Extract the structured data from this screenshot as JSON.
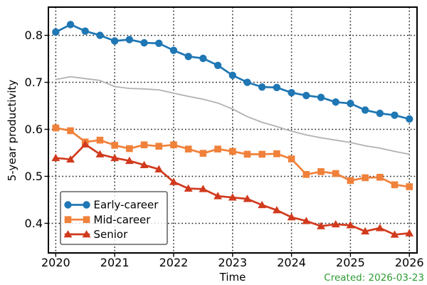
{
  "figure": {
    "created_label": "Created: 2026-03-23",
    "created_color": "#2e9b33",
    "background": "#ffffff",
    "text_color": "#000000"
  },
  "chart_data": {
    "type": "line",
    "title": "",
    "xlabel": "Time",
    "ylabel": "5-year productivity",
    "xlim": [
      2019.875,
      2026.13
    ],
    "ylim": [
      0.337,
      0.86
    ],
    "x_ticks": [
      2020,
      2021,
      2022,
      2023,
      2024,
      2025,
      2026
    ],
    "y_ticks": [
      0.4,
      0.5,
      0.6,
      0.7,
      0.8
    ],
    "grid": {
      "show": true,
      "style": "dotted",
      "color": "#000000"
    },
    "legend": {
      "position": "lower left",
      "border_color": "#444444",
      "fill_opacity": 0.8
    },
    "x": [
      2020,
      2020.25,
      2020.5,
      2020.75,
      2021,
      2021.25,
      2021.5,
      2021.75,
      2022,
      2022.25,
      2022.5,
      2022.75,
      2023,
      2023.25,
      2023.5,
      2023.75,
      2024,
      2024.25,
      2024.5,
      2024.75,
      2025,
      2025.25,
      2025.5,
      2025.75,
      2026
    ],
    "series": [
      {
        "name": "Early-career",
        "color": "#1f77b4",
        "marker": "circle",
        "in_legend": true,
        "values": [
          0.807,
          0.823,
          0.809,
          0.8,
          0.788,
          0.791,
          0.784,
          0.783,
          0.768,
          0.755,
          0.751,
          0.736,
          0.715,
          0.7,
          0.69,
          0.689,
          0.678,
          0.672,
          0.668,
          0.658,
          0.655,
          0.641,
          0.634,
          0.63,
          0.622
        ]
      },
      {
        "name": "Mid-career",
        "color": "#f0813a",
        "marker": "square",
        "in_legend": true,
        "values": [
          0.603,
          0.597,
          0.573,
          0.577,
          0.566,
          0.559,
          0.567,
          0.564,
          0.567,
          0.558,
          0.549,
          0.558,
          0.553,
          0.547,
          0.547,
          0.548,
          0.537,
          0.504,
          0.51,
          0.506,
          0.491,
          0.497,
          0.498,
          0.482,
          0.478
        ]
      },
      {
        "name": "Senior",
        "color": "#d13a1d",
        "marker": "triangle",
        "in_legend": true,
        "values": [
          0.539,
          0.536,
          0.568,
          0.547,
          0.539,
          0.533,
          0.524,
          0.515,
          0.488,
          0.474,
          0.473,
          0.458,
          0.455,
          0.452,
          0.439,
          0.428,
          0.413,
          0.405,
          0.394,
          0.398,
          0.396,
          0.383,
          0.39,
          0.376,
          0.379
        ]
      },
      {
        "name": "unlabeled-reference",
        "color": "#b2b2b2",
        "marker": "none",
        "in_legend": false,
        "values": [
          0.706,
          0.712,
          0.708,
          0.704,
          0.691,
          0.687,
          0.686,
          0.684,
          0.677,
          0.67,
          0.664,
          0.656,
          0.643,
          0.627,
          0.615,
          0.606,
          0.596,
          0.588,
          0.582,
          0.577,
          0.572,
          0.565,
          0.56,
          0.553,
          0.547
        ]
      }
    ]
  }
}
